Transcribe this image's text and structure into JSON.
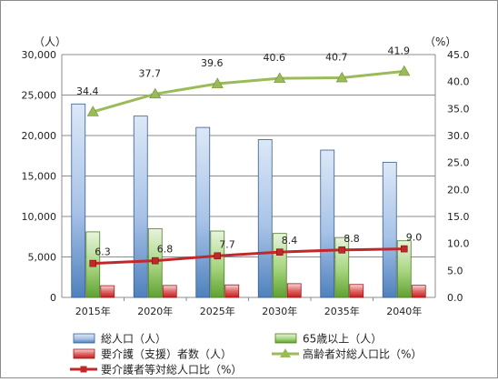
{
  "chart_data": {
    "type": "bar",
    "categories": [
      "2015年",
      "2020年",
      "2025年",
      "2030年",
      "2035年",
      "2040年"
    ],
    "y_left": {
      "unit": "（人）",
      "ylim": [
        0,
        30000
      ],
      "ticks": [
        "0",
        "5,000",
        "10,000",
        "15,000",
        "20,000",
        "25,000",
        "30,000"
      ]
    },
    "y_right": {
      "unit": "（%）",
      "ylim": [
        0,
        45
      ],
      "ticks": [
        "0.0",
        "5.0",
        "10.0",
        "15.0",
        "20.0",
        "25.0",
        "30.0",
        "35.0",
        "40.0",
        "45.0"
      ]
    },
    "grid": true,
    "legend_position": "bottom",
    "series": [
      {
        "name": "総人口（人）",
        "kind": "bar",
        "axis": "left",
        "color": "#4f81bd",
        "values": [
          23900,
          22400,
          21000,
          19500,
          18200,
          16700
        ]
      },
      {
        "name": "65歳以上（人）",
        "kind": "bar",
        "axis": "left",
        "color": "#7cb84b",
        "values": [
          8100,
          8500,
          8200,
          7900,
          7400,
          7000
        ]
      },
      {
        "name": "要介護（支援）者数（人）",
        "kind": "bar",
        "axis": "left",
        "color": "#d4312f",
        "values": [
          1450,
          1480,
          1550,
          1700,
          1600,
          1500
        ]
      },
      {
        "name": "高齢者対総人口比（%）",
        "kind": "line",
        "axis": "right",
        "color": "#9bbb59",
        "marker": "triangle",
        "values": [
          34.4,
          37.7,
          39.6,
          40.6,
          40.7,
          41.9
        ],
        "labels": [
          "34.4",
          "37.7",
          "39.6",
          "40.6",
          "40.7",
          "41.9"
        ]
      },
      {
        "name": "要介護者等対総人口比（%）",
        "kind": "line",
        "axis": "right",
        "color": "#c0282a",
        "marker": "square",
        "values": [
          6.3,
          6.8,
          7.7,
          8.4,
          8.8,
          9.0
        ],
        "labels": [
          "6.3",
          "6.8",
          "7.7",
          "8.4",
          "8.8",
          "9.0"
        ]
      }
    ]
  }
}
